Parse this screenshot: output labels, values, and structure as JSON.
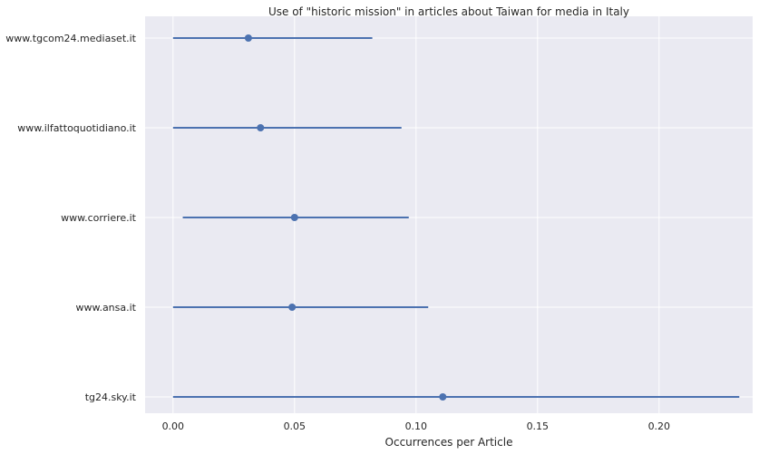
{
  "chart_data": {
    "type": "scatter",
    "title": "Use of \"historic mission\" in articles about Taiwan for media in Italy",
    "xlabel": "Occurrences per Article",
    "ylabel": "",
    "xlim": [
      -0.0115,
      0.2385
    ],
    "xticks": [
      0.0,
      0.05,
      0.1,
      0.15,
      0.2
    ],
    "xtick_labels": [
      "0.00",
      "0.05",
      "0.10",
      "0.15",
      "0.20"
    ],
    "categories": [
      "www.tgcom24.mediaset.it",
      "www.ilfattoquotidiano.it",
      "www.corriere.it",
      "www.ansa.it",
      "tg24.sky.it"
    ],
    "points": [
      {
        "label": "www.tgcom24.mediaset.it",
        "value": 0.031,
        "ci_low": 0.0,
        "ci_high": 0.082
      },
      {
        "label": "www.ilfattoquotidiano.it",
        "value": 0.036,
        "ci_low": 0.0,
        "ci_high": 0.094
      },
      {
        "label": "www.corriere.it",
        "value": 0.05,
        "ci_low": 0.004,
        "ci_high": 0.097
      },
      {
        "label": "www.ansa.it",
        "value": 0.049,
        "ci_low": 0.0,
        "ci_high": 0.105
      },
      {
        "label": "tg24.sky.it",
        "value": 0.111,
        "ci_low": 0.0,
        "ci_high": 0.233
      }
    ],
    "grid": true,
    "colors": {
      "background": "#eaeaf2",
      "grid": "#ffffff",
      "marker": "#4c72b0"
    }
  }
}
